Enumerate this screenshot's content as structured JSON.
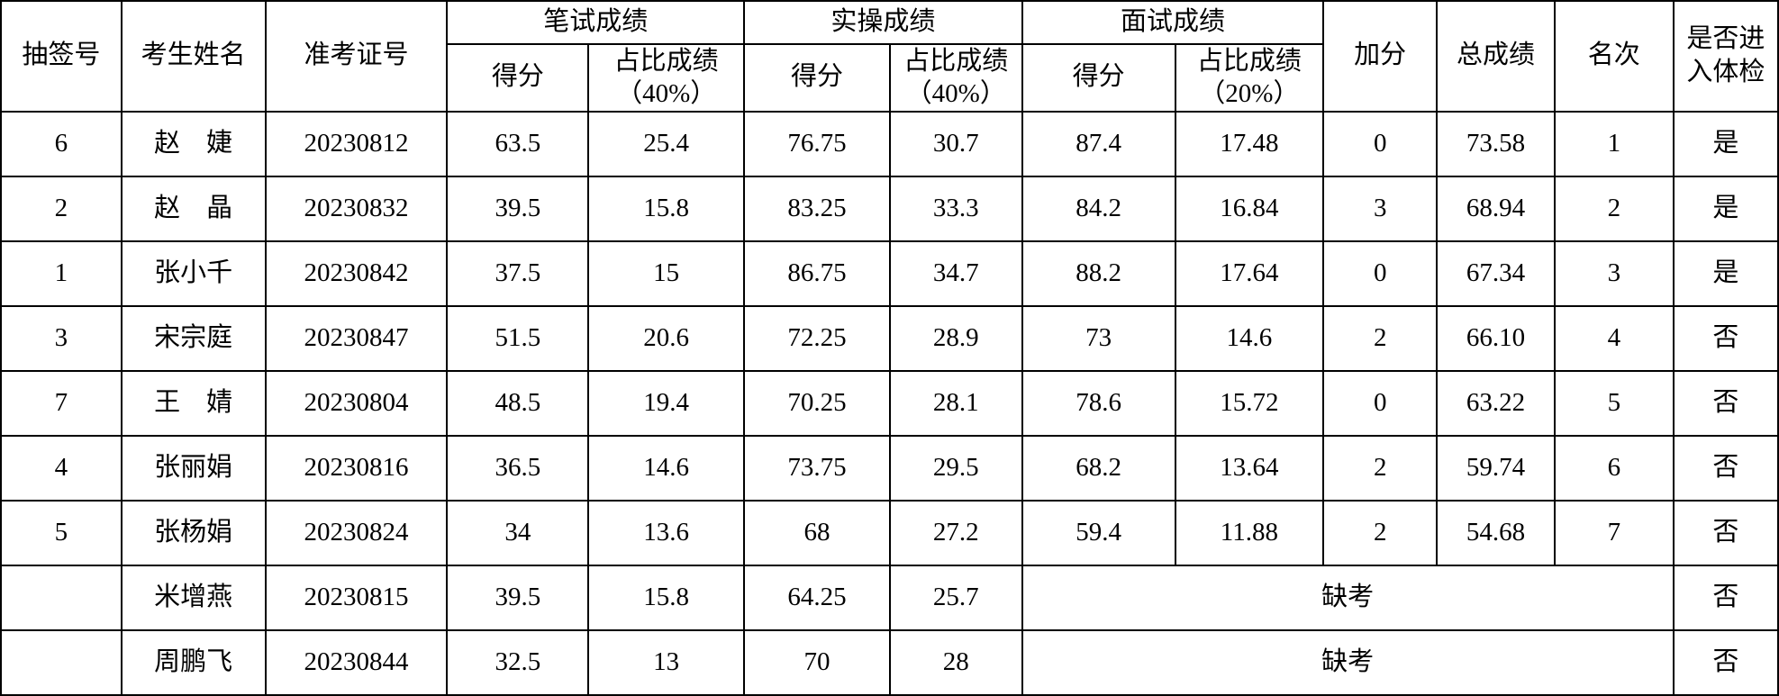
{
  "table": {
    "header": {
      "draw_number": "抽签号",
      "candidate_name": "考生姓名",
      "ticket_number": "准考证号",
      "written_group": "笔试成绩",
      "practical_group": "实操成绩",
      "interview_group": "面试成绩",
      "score": "得分",
      "pct_title": "占比成绩",
      "written_pct": "（40%）",
      "practical_pct": "（40%）",
      "interview_pct": "（20%）",
      "bonus": "加分",
      "total": "总成绩",
      "rank": "名次",
      "physical": "是否进入体检"
    },
    "rows": [
      {
        "draw": "6",
        "name": "赵　婕",
        "ticket": "20230812",
        "written": "63.5",
        "written_pct": "25.4",
        "practical": "76.75",
        "practical_pct": "30.7",
        "interview": "87.4",
        "interview_pct": "17.48",
        "bonus": "0",
        "total": "73.58",
        "rank": "1",
        "physical": "是"
      },
      {
        "draw": "2",
        "name": "赵　晶",
        "ticket": "20230832",
        "written": "39.5",
        "written_pct": "15.8",
        "practical": "83.25",
        "practical_pct": "33.3",
        "interview": "84.2",
        "interview_pct": "16.84",
        "bonus": "3",
        "total": "68.94",
        "rank": "2",
        "physical": "是"
      },
      {
        "draw": "1",
        "name": "张小千",
        "ticket": "20230842",
        "written": "37.5",
        "written_pct": "15",
        "practical": "86.75",
        "practical_pct": "34.7",
        "interview": "88.2",
        "interview_pct": "17.64",
        "bonus": "0",
        "total": "67.34",
        "rank": "3",
        "physical": "是"
      },
      {
        "draw": "3",
        "name": "宋宗庭",
        "ticket": "20230847",
        "written": "51.5",
        "written_pct": "20.6",
        "practical": "72.25",
        "practical_pct": "28.9",
        "interview": "73",
        "interview_pct": "14.6",
        "bonus": "2",
        "total": "66.10",
        "rank": "4",
        "physical": "否"
      },
      {
        "draw": "7",
        "name": "王　婧",
        "ticket": "20230804",
        "written": "48.5",
        "written_pct": "19.4",
        "practical": "70.25",
        "practical_pct": "28.1",
        "interview": "78.6",
        "interview_pct": "15.72",
        "bonus": "0",
        "total": "63.22",
        "rank": "5",
        "physical": "否"
      },
      {
        "draw": "4",
        "name": "张丽娟",
        "ticket": "20230816",
        "written": "36.5",
        "written_pct": "14.6",
        "practical": "73.75",
        "practical_pct": "29.5",
        "interview": "68.2",
        "interview_pct": "13.64",
        "bonus": "2",
        "total": "59.74",
        "rank": "6",
        "physical": "否"
      },
      {
        "draw": "5",
        "name": "张杨娟",
        "ticket": "20230824",
        "written": "34",
        "written_pct": "13.6",
        "practical": "68",
        "practical_pct": "27.2",
        "interview": "59.4",
        "interview_pct": "11.88",
        "bonus": "2",
        "total": "54.68",
        "rank": "7",
        "physical": "否"
      },
      {
        "draw": "",
        "name": "米增燕",
        "ticket": "20230815",
        "written": "39.5",
        "written_pct": "15.8",
        "practical": "64.25",
        "practical_pct": "25.7",
        "absent": "缺考",
        "physical": "否"
      },
      {
        "draw": "",
        "name": "周鹏飞",
        "ticket": "20230844",
        "written": "32.5",
        "written_pct": "13",
        "practical": "70",
        "practical_pct": "28",
        "absent": "缺考",
        "physical": "否"
      }
    ]
  }
}
